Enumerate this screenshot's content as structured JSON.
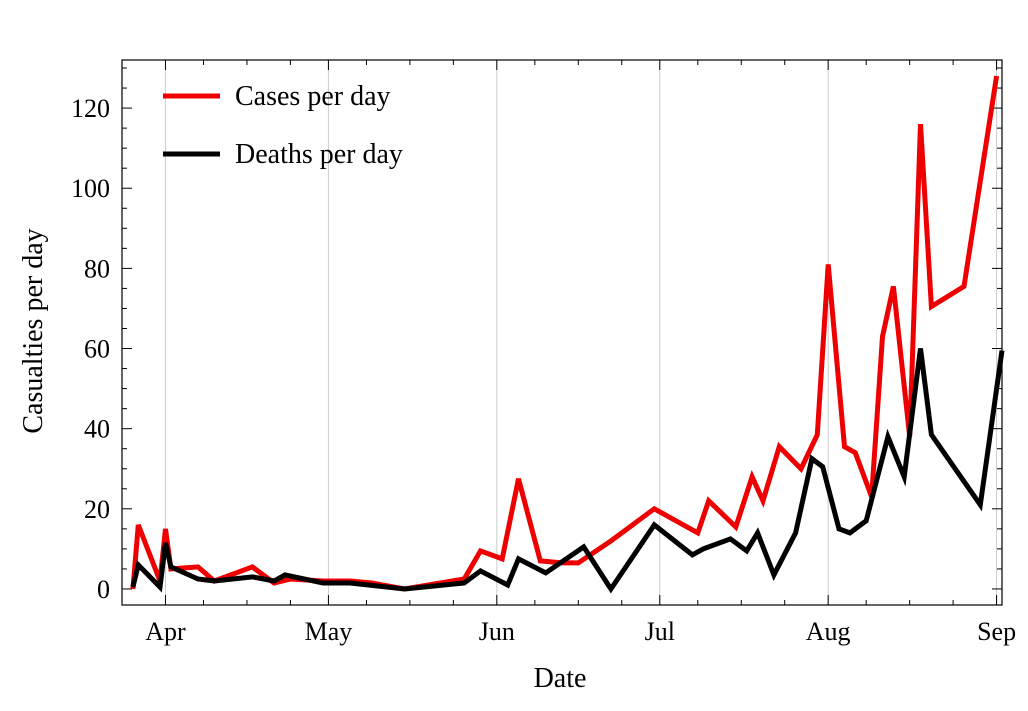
{
  "chart_data": {
    "type": "line",
    "xlabel": "Date",
    "ylabel": "Casualties per day",
    "x_ticks": [
      {
        "label": "Apr",
        "date": "2020-04-01"
      },
      {
        "label": "May",
        "date": "2020-05-01"
      },
      {
        "label": "Jun",
        "date": "2020-06-01"
      },
      {
        "label": "Jul",
        "date": "2020-07-01"
      },
      {
        "label": "Aug",
        "date": "2020-08-01"
      },
      {
        "label": "Sep",
        "date": "2020-09-01"
      }
    ],
    "xlim": [
      "2020-03-24",
      "2020-09-02"
    ],
    "ylim": [
      -4,
      132
    ],
    "y_ticks": [
      0,
      20,
      40,
      60,
      80,
      100,
      120
    ],
    "grid": "vertical lines at month starts",
    "legend_position": "top-left",
    "series": [
      {
        "name": "Cases per day",
        "color": "#ee0000",
        "points": [
          [
            "2020-03-26",
            0
          ],
          [
            "2020-03-27",
            16
          ],
          [
            "2020-03-31",
            2
          ],
          [
            "2020-04-01",
            15
          ],
          [
            "2020-04-02",
            5
          ],
          [
            "2020-04-07",
            5.5
          ],
          [
            "2020-04-10",
            2
          ],
          [
            "2020-04-17",
            5.5
          ],
          [
            "2020-04-21",
            1.5
          ],
          [
            "2020-04-24",
            2.5
          ],
          [
            "2020-04-30",
            2
          ],
          [
            "2020-05-05",
            2
          ],
          [
            "2020-05-09",
            1.5
          ],
          [
            "2020-05-15",
            0
          ],
          [
            "2020-05-26",
            2.5
          ],
          [
            "2020-05-29",
            9.5
          ],
          [
            "2020-06-01",
            8
          ],
          [
            "2020-06-02",
            7.5
          ],
          [
            "2020-06-05",
            27.5
          ],
          [
            "2020-06-09",
            7
          ],
          [
            "2020-06-13",
            6.5
          ],
          [
            "2020-06-16",
            6.5
          ],
          [
            "2020-06-22",
            12
          ],
          [
            "2020-06-30",
            20
          ],
          [
            "2020-07-08",
            14
          ],
          [
            "2020-07-10",
            22
          ],
          [
            "2020-07-15",
            15.5
          ],
          [
            "2020-07-18",
            28
          ],
          [
            "2020-07-20",
            22
          ],
          [
            "2020-07-23",
            35.5
          ],
          [
            "2020-07-27",
            30
          ],
          [
            "2020-07-30",
            38.5
          ],
          [
            "2020-08-01",
            81
          ],
          [
            "2020-08-04",
            35.5
          ],
          [
            "2020-08-06",
            34
          ],
          [
            "2020-08-09",
            23
          ],
          [
            "2020-08-11",
            63
          ],
          [
            "2020-08-13",
            75.5
          ],
          [
            "2020-08-16",
            38
          ],
          [
            "2020-08-18",
            116
          ],
          [
            "2020-08-20",
            70.5
          ],
          [
            "2020-08-26",
            75.5
          ],
          [
            "2020-09-01",
            128
          ]
        ]
      },
      {
        "name": "Deaths per day",
        "color": "#000000",
        "points": [
          [
            "2020-03-26",
            0.5
          ],
          [
            "2020-03-27",
            6
          ],
          [
            "2020-03-31",
            0.5
          ],
          [
            "2020-04-01",
            11.5
          ],
          [
            "2020-04-02",
            5.5
          ],
          [
            "2020-04-07",
            2.5
          ],
          [
            "2020-04-10",
            2
          ],
          [
            "2020-04-17",
            3
          ],
          [
            "2020-04-21",
            2
          ],
          [
            "2020-04-23",
            3.5
          ],
          [
            "2020-04-30",
            1.5
          ],
          [
            "2020-05-05",
            1.5
          ],
          [
            "2020-05-15",
            0
          ],
          [
            "2020-05-26",
            1.5
          ],
          [
            "2020-05-29",
            4.5
          ],
          [
            "2020-06-03",
            1
          ],
          [
            "2020-06-05",
            7.5
          ],
          [
            "2020-06-10",
            4
          ],
          [
            "2020-06-17",
            10.5
          ],
          [
            "2020-06-22",
            0
          ],
          [
            "2020-06-30",
            16
          ],
          [
            "2020-07-07",
            8.5
          ],
          [
            "2020-07-09",
            10
          ],
          [
            "2020-07-14",
            12.5
          ],
          [
            "2020-07-17",
            9.5
          ],
          [
            "2020-07-19",
            14
          ],
          [
            "2020-07-22",
            3.5
          ],
          [
            "2020-07-26",
            14
          ],
          [
            "2020-07-29",
            32.5
          ],
          [
            "2020-07-31",
            30.5
          ],
          [
            "2020-08-03",
            15
          ],
          [
            "2020-08-05",
            14
          ],
          [
            "2020-08-08",
            17
          ],
          [
            "2020-08-12",
            38
          ],
          [
            "2020-08-15",
            28
          ],
          [
            "2020-08-18",
            60
          ],
          [
            "2020-08-20",
            38.5
          ],
          [
            "2020-08-29",
            21
          ],
          [
            "2020-09-02",
            59.5
          ]
        ]
      }
    ]
  }
}
